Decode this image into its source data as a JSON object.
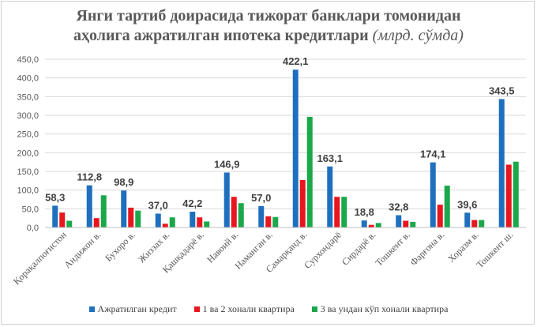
{
  "chart_data": {
    "type": "bar",
    "title": "Янги тартиб доирасида тижорат банклари томонидан",
    "title_line2": "аҳолига ажратилган ипотека кредитлари",
    "title_unit": "(млрд. сўмда)",
    "categories": [
      "Қорақалпоғистон",
      "Андижон в.",
      "Бухоро в.",
      "Жиззах в.",
      "Қашқадарё в.",
      "Навоий в.",
      "Наманган в.",
      "Самарқанд в.",
      "Сурхондарё",
      "Сирдарё в.",
      "Тошкент в.",
      "Фарғона в.",
      "Хоразм в.",
      "Тошкент ш."
    ],
    "series": [
      {
        "name": "Ажратилган кредит",
        "color": "#1f6fbf",
        "values": [
          58.3,
          112.8,
          98.9,
          37.0,
          42.2,
          146.9,
          57.0,
          422.1,
          163.1,
          18.8,
          32.8,
          174.1,
          39.6,
          343.5
        ],
        "labels": [
          "58,3",
          "112,8",
          "98,9",
          "37,0",
          "42,2",
          "146,9",
          "57,0",
          "422,1",
          "163,1",
          "18,8",
          "32,8",
          "174,1",
          "39,6",
          "343,5"
        ]
      },
      {
        "name": "1 ва 2 хонали квартира",
        "color": "#e8161e",
        "values": [
          40,
          25,
          53,
          10,
          27,
          82,
          30,
          127,
          82,
          7,
          18,
          61,
          20,
          168
        ]
      },
      {
        "name": "3 ва ундан кўп хонали квартира",
        "color": "#1aa84a",
        "values": [
          18,
          86,
          45,
          27,
          16,
          65,
          28,
          296,
          82,
          12,
          15,
          112,
          20,
          176
        ]
      }
    ],
    "ylim": [
      0,
      450
    ],
    "yticks": [
      "0,0",
      "50,0",
      "100,0",
      "150,0",
      "200,0",
      "250,0",
      "300,0",
      "350,0",
      "400,0",
      "450,0"
    ],
    "grid": true,
    "legend": "bottom"
  }
}
